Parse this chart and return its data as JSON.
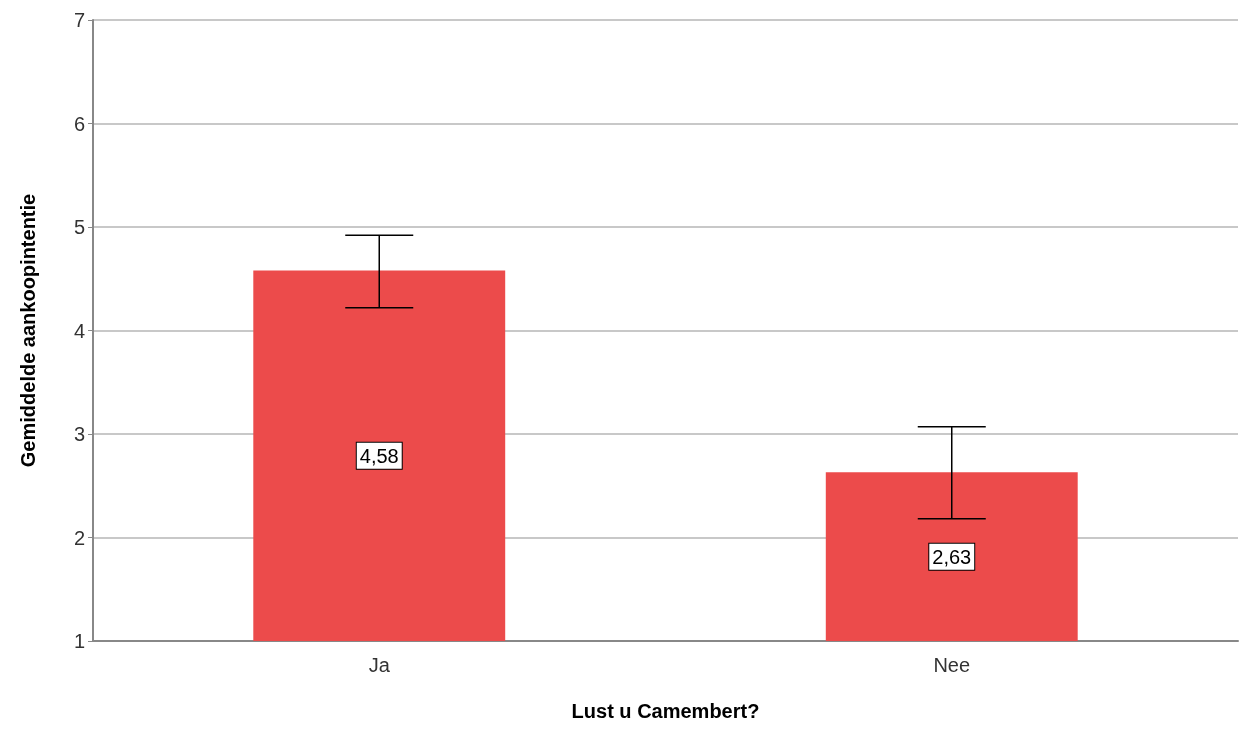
{
  "chart_data": {
    "type": "bar",
    "xlabel": "Lust u Camembert?",
    "ylabel": "Gemiddelde aankoopintentie",
    "categories": [
      "Ja",
      "Nee"
    ],
    "values": [
      4.58,
      2.63
    ],
    "value_labels": [
      "4,58",
      "2,63"
    ],
    "errors": [
      [
        4.22,
        4.92
      ],
      [
        2.18,
        3.07
      ]
    ],
    "color": "#ec4b4b",
    "ylim": [
      1,
      7
    ],
    "yticks": [
      1,
      2,
      3,
      4,
      5,
      6,
      7
    ],
    "grid": "y"
  }
}
